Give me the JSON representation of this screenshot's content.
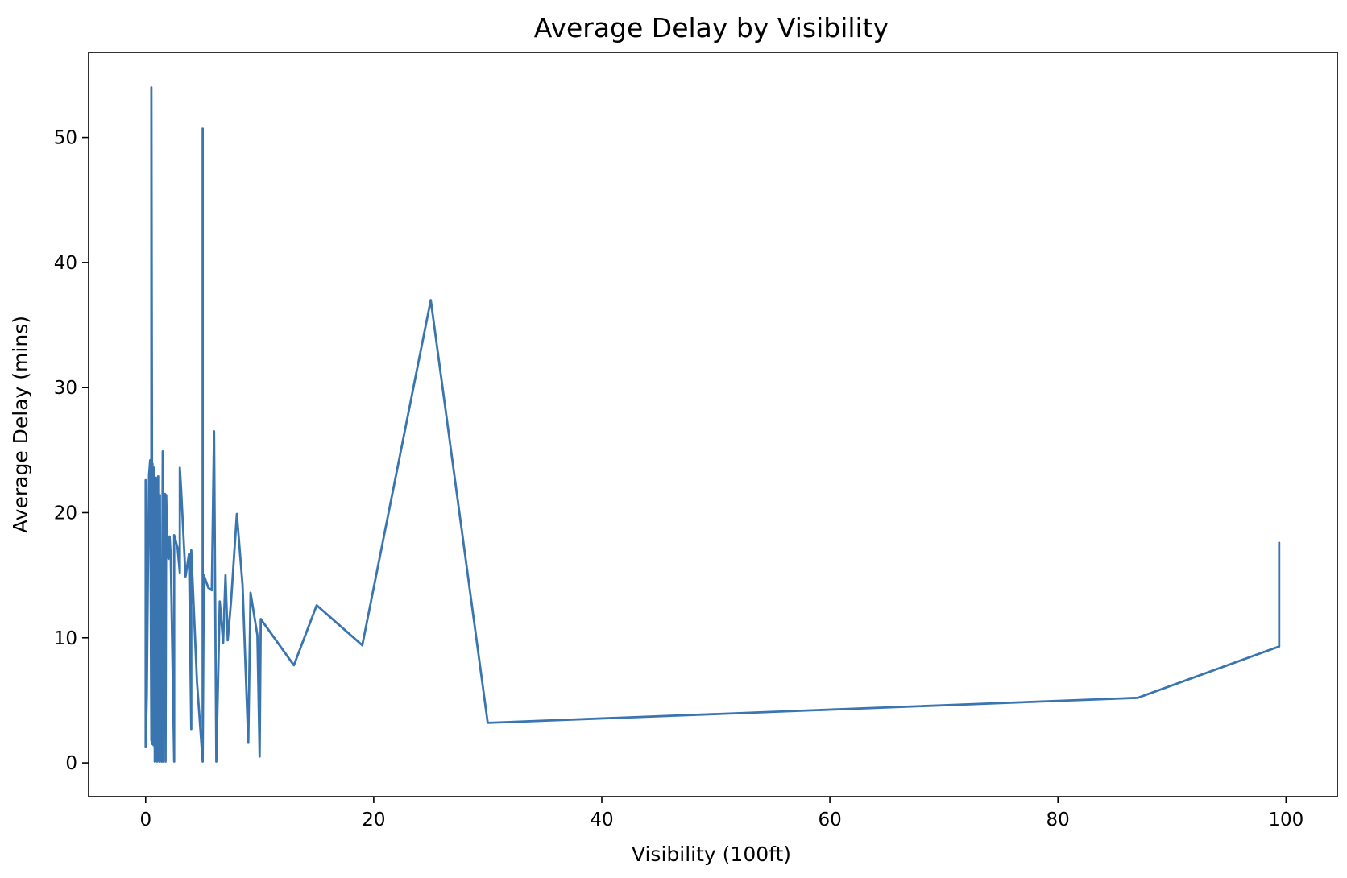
{
  "chart_data": {
    "type": "line",
    "title": "Average Delay by Visibility",
    "xlabel": "Visibility (100ft)",
    "ylabel": "Average Delay (mins)",
    "xlim": [
      -5,
      104.5
    ],
    "ylim": [
      -2.7,
      56.8
    ],
    "xticks": [
      0,
      20,
      40,
      60,
      80,
      100
    ],
    "yticks": [
      0,
      10,
      20,
      30,
      40,
      50
    ],
    "grid": false,
    "color": "#3a75b0",
    "series": [
      {
        "x": [
          0,
          0,
          0.1,
          0.2,
          0.3,
          0.4,
          0.5,
          0.5,
          0.6,
          0.6,
          0.7,
          0.7,
          0.75,
          0.8,
          0.9,
          1,
          1.1,
          1.1,
          1.2,
          1.25,
          1.3,
          1.4,
          1.5,
          1.5,
          1.6,
          1.7,
          1.75,
          1.8,
          1.9,
          2,
          2.1,
          2.2,
          2.5,
          2.5,
          2.8,
          3,
          3,
          3.1,
          3.5,
          3.8,
          4,
          4,
          4.5,
          5,
          5,
          5,
          5.1,
          5.5,
          5.8,
          6,
          6.2,
          6.5,
          6.8,
          7,
          7.2,
          7.5,
          8,
          8.5,
          9,
          9.2,
          9.8,
          10,
          10.1,
          13,
          15,
          19,
          25,
          30,
          87,
          99.4,
          99.4
        ],
        "y": [
          22.6,
          1.3,
          5.4,
          15,
          23,
          24.2,
          1.8,
          54,
          1.5,
          23.9,
          1.4,
          20.8,
          23.6,
          0.1,
          22.8,
          0.1,
          22.9,
          1.6,
          0.1,
          21.4,
          1.8,
          0.1,
          24.9,
          0.1,
          17.2,
          21.5,
          0.1,
          21.4,
          17.1,
          16.3,
          18.1,
          16.6,
          0.1,
          18.2,
          17.2,
          15.2,
          23.6,
          22,
          14.9,
          16.7,
          2.7,
          17,
          6.5,
          0.1,
          50.7,
          0.1,
          15,
          14,
          13.8,
          26.5,
          0.1,
          12.9,
          9.6,
          15,
          9.8,
          13,
          19.9,
          14.2,
          1.6,
          13.6,
          10.2,
          0.5,
          11.5,
          7.8,
          12.6,
          9.4,
          37,
          3.2,
          5.2,
          9.3,
          17.6
        ]
      }
    ]
  }
}
